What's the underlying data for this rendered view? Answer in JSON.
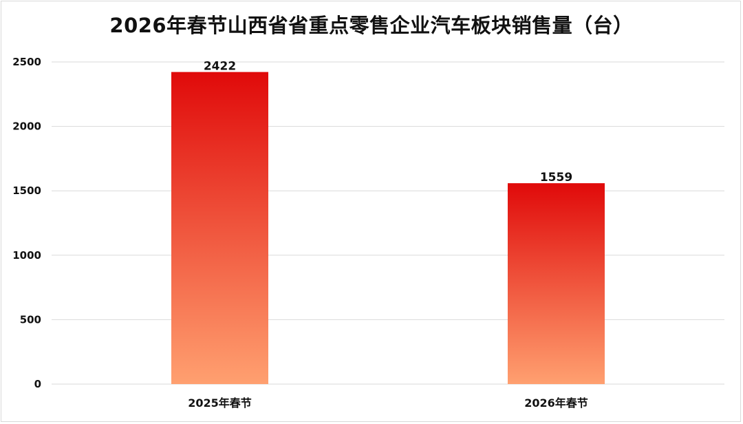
{
  "chart_data": {
    "type": "bar",
    "title": "2026年春节山西省省重点零售企业汽车板块销售量（台）",
    "xlabel": "",
    "ylabel": "",
    "categories": [
      "2025年春节",
      "2026年春节"
    ],
    "values": [
      2422,
      1559
    ],
    "ylim": [
      0,
      2500
    ],
    "yticks": [
      0,
      500,
      1000,
      1500,
      2000,
      2500
    ],
    "grid": true,
    "data_labels": true,
    "colors": {
      "bar_top": "#e00a0a",
      "bar_bottom": "#ffa070",
      "grid": "#d9d9d9"
    }
  }
}
